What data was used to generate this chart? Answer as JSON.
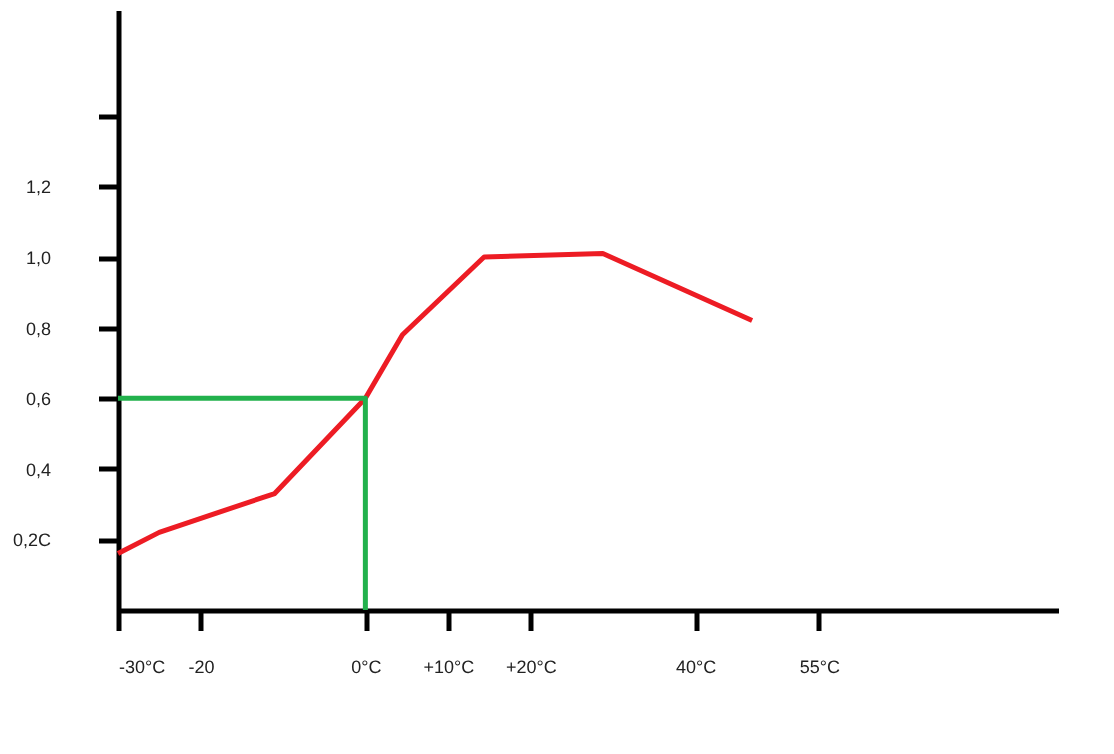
{
  "chart_data": {
    "type": "line",
    "xlim": [
      -30,
      84
    ],
    "ylim": [
      0,
      1.7
    ],
    "xticks": [
      {
        "value": -30,
        "label": "-30°C"
      },
      -20,
      {
        "value": 0,
        "label": "0°C"
      },
      {
        "value": 10,
        "label": "+10°C"
      },
      {
        "value": 20,
        "label": "+20°C"
      },
      {
        "value": 40,
        "label": "40°C"
      },
      {
        "value": 55,
        "label": "55°C"
      }
    ],
    "yticks": [
      {
        "value": 0.2,
        "label": "0,2C"
      },
      {
        "value": 0.4,
        "label": "0,4"
      },
      {
        "value": 0.6,
        "label": "0,6"
      },
      {
        "value": 0.8,
        "label": "0,8"
      },
      {
        "value": 1.0,
        "label": "1,0"
      },
      {
        "value": 1.2,
        "label": "1,2"
      },
      {
        "value": 1.4,
        "label": null
      }
    ],
    "series": [
      {
        "color": "#ed1c24",
        "x": [
          -30,
          -25,
          -11,
          0,
          4.5,
          14.4,
          28.8,
          46.9
        ],
        "values": [
          0.16,
          0.22,
          0.33,
          0.6,
          0.78,
          1.0,
          1.01,
          0.82
        ]
      },
      {
        "color": "#22b14c",
        "x": [
          -30,
          0,
          0
        ],
        "values": [
          0.6,
          0.6,
          0
        ]
      }
    ],
    "grid": false,
    "marker": "none",
    "line_style": "solid"
  }
}
